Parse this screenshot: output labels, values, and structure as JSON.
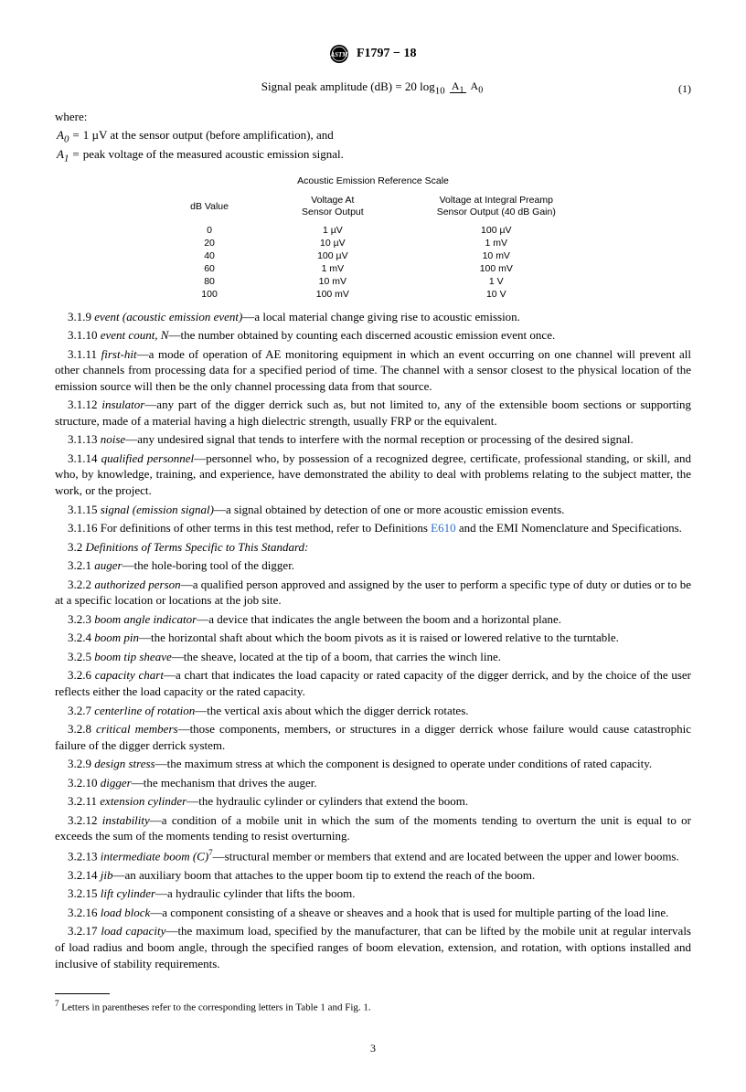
{
  "header": {
    "designation": "F1797 − 18"
  },
  "equation": {
    "left": "Signal peak amplitude (dB) = 20 log",
    "logbase": "10",
    "numerator": "A",
    "numerator_sub": "1",
    "denominator": "A",
    "denominator_sub": "0",
    "eqnum": "(1)"
  },
  "where_label": "where:",
  "where": [
    {
      "sym": "A",
      "sub": "0",
      "eq": "=",
      "text": "1 µV at the sensor output (before amplification), and"
    },
    {
      "sym": "A",
      "sub": "1",
      "eq": "=",
      "text": "peak voltage of the measured acoustic emission signal."
    }
  ],
  "ref_table": {
    "title": "Acoustic Emission Reference Scale",
    "headers": [
      "dB Value",
      "Voltage At\nSensor Output",
      "Voltage at Integral Preamp\nSensor Output (40 dB Gain)"
    ],
    "rows": [
      [
        "0",
        "1 µV",
        "100 µV"
      ],
      [
        "20",
        "10 µV",
        "1 mV"
      ],
      [
        "40",
        "100 µV",
        "10 mV"
      ],
      [
        "60",
        "1 mV",
        "100 mV"
      ],
      [
        "80",
        "10 mV",
        "1 V"
      ],
      [
        "100",
        "100 mV",
        "10 V"
      ]
    ]
  },
  "defs1": [
    {
      "num": "3.1.9",
      "term": "event (acoustic emission event)",
      "text": "—a local material change giving rise to acoustic emission."
    },
    {
      "num": "3.1.10",
      "term": "event count, N",
      "text": "—the number obtained by counting each discerned acoustic emission event once."
    },
    {
      "num": "3.1.11",
      "term": "first-hit",
      "text": "—a mode of operation of AE monitoring equipment in which an event occurring on one channel will prevent all other channels from processing data for a specified period of time. The channel with a sensor closest to the physical location of the emission source will then be the only channel processing data from that source."
    },
    {
      "num": "3.1.12",
      "term": "insulator",
      "text": "—any part of the digger derrick such as, but not limited to, any of the extensible boom sections or supporting structure, made of a material having a high dielectric strength, usually FRP or the equivalent."
    },
    {
      "num": "3.1.13",
      "term": "noise",
      "text": "—any undesired signal that tends to interfere with the normal reception or processing of the desired signal."
    },
    {
      "num": "3.1.14",
      "term": "qualified personnel",
      "text": "—personnel who, by possession of a recognized degree, certificate, professional standing, or skill, and who, by knowledge, training, and experience, have demonstrated the ability to deal with problems relating to the subject matter, the work, or the project."
    },
    {
      "num": "3.1.15",
      "term": "signal (emission signal)",
      "text": "—a signal obtained by detection of one or more acoustic emission events."
    }
  ],
  "def_3_1_16": {
    "num": "3.1.16",
    "pre": "For definitions of other terms in this test method, refer to Definitions ",
    "link": "E610",
    "post": " and the EMI Nomenclature and Specifications."
  },
  "sec32_heading": {
    "num": "3.2",
    "text": "Definitions of Terms Specific to This Standard:"
  },
  "defs2": [
    {
      "num": "3.2.1",
      "term": "auger",
      "text": "—the hole-boring tool of the digger."
    },
    {
      "num": "3.2.2",
      "term": "authorized person",
      "text": "—a qualified person approved and assigned by the user to perform a specific type of duty or duties or to be at a specific location or locations at the job site."
    },
    {
      "num": "3.2.3",
      "term": "boom angle indicator",
      "text": "—a device that indicates the angle between the boom and a horizontal plane."
    },
    {
      "num": "3.2.4",
      "term": "boom pin",
      "text": "—the horizontal shaft about which the boom pivots as it is raised or lowered relative to the turntable."
    },
    {
      "num": "3.2.5",
      "term": "boom tip sheave",
      "text": "—the sheave, located at the tip of a boom, that carries the winch line."
    },
    {
      "num": "3.2.6",
      "term": "capacity chart",
      "text": "—a chart that indicates the load capacity or rated capacity of the digger derrick, and by the choice of the user reflects either the load capacity or the rated capacity."
    },
    {
      "num": "3.2.7",
      "term": "centerline of rotation",
      "text": "—the vertical axis about which the digger derrick rotates."
    },
    {
      "num": "3.2.8",
      "term": "critical members",
      "text": "—those components, members, or structures in a digger derrick whose failure would cause catastrophic failure of the digger derrick system."
    },
    {
      "num": "3.2.9",
      "term": "design stress",
      "text": "—the maximum stress at which the component is designed to operate under conditions of rated capacity."
    },
    {
      "num": "3.2.10",
      "term": "digger",
      "text": "—the mechanism that drives the auger."
    },
    {
      "num": "3.2.11",
      "term": "extension cylinder",
      "text": "—the hydraulic cylinder or cylinders that extend the boom."
    },
    {
      "num": "3.2.12",
      "term": "instability",
      "text": "—a condition of a mobile unit in which the sum of the moments tending to overturn the unit is equal to or exceeds the sum of the moments tending to resist overturning."
    }
  ],
  "def_3_2_13": {
    "num": "3.2.13",
    "term": "intermediate boom (C)",
    "sup": "7",
    "text": "—structural member or members that extend and are located between the upper and lower booms."
  },
  "defs3": [
    {
      "num": "3.2.14",
      "term": "jib",
      "text": "—an auxiliary boom that attaches to the upper boom tip to extend the reach of the boom."
    },
    {
      "num": "3.2.15",
      "term": "lift cylinder",
      "text": "—a hydraulic cylinder that lifts the boom."
    },
    {
      "num": "3.2.16",
      "term": "load block",
      "text": "—a component consisting of a sheave or sheaves and a hook that is used for multiple parting of the load line."
    },
    {
      "num": "3.2.17",
      "term": "load capacity",
      "text": "—the maximum load, specified by the manufacturer, that can be lifted by the mobile unit at regular intervals of load radius and boom angle, through the specified ranges of boom elevation, extension, and rotation, with options installed and inclusive of stability requirements."
    }
  ],
  "footnote": {
    "sup": "7",
    "text": " Letters in parentheses refer to the corresponding letters in Table 1 and Fig. 1."
  },
  "page_number": "3"
}
